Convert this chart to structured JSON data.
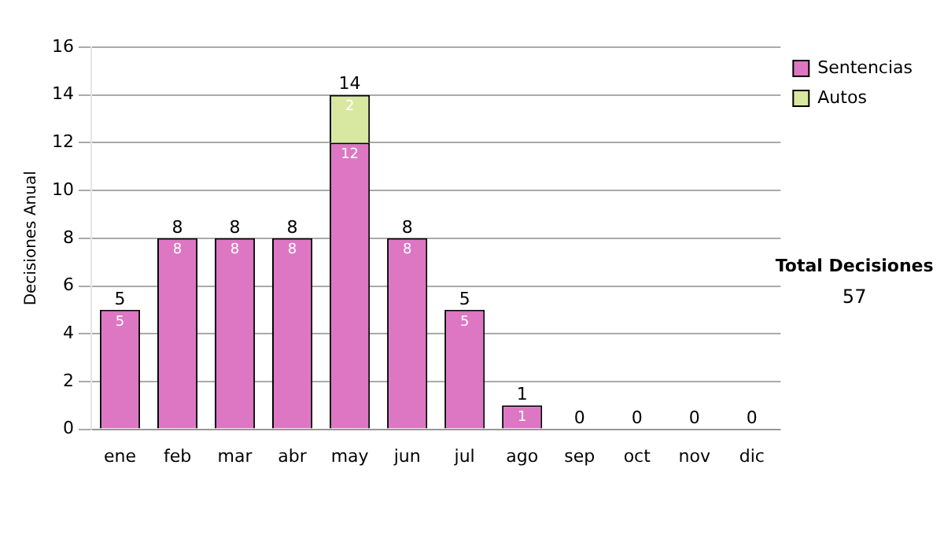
{
  "chart_data": {
    "type": "bar",
    "stacked": true,
    "ylabel": "Decisiones Anual",
    "categories": [
      "ene",
      "feb",
      "mar",
      "abr",
      "may",
      "jun",
      "jul",
      "ago",
      "sep",
      "oct",
      "nov",
      "dic"
    ],
    "series": [
      {
        "name": "Sentencias",
        "color": "#dd77c4",
        "values": [
          5,
          8,
          8,
          8,
          12,
          8,
          5,
          1,
          0,
          0,
          0,
          0
        ],
        "value_labels": [
          "5",
          "8",
          "8",
          "8",
          "12",
          "8",
          "5",
          "1",
          null,
          null,
          null,
          null
        ]
      },
      {
        "name": "Autos",
        "color": "#d8e8a0",
        "values": [
          0,
          0,
          0,
          0,
          2,
          0,
          0,
          0,
          0,
          0,
          0,
          0
        ],
        "value_labels": [
          null,
          null,
          null,
          null,
          "2",
          null,
          null,
          null,
          null,
          null,
          null,
          null
        ]
      }
    ],
    "totals": [
      "5",
      "8",
      "8",
      "8",
      "14",
      "8",
      "5",
      "1",
      "0",
      "0",
      "0",
      "0"
    ],
    "ylim": [
      0,
      16
    ],
    "yticks": [
      0,
      2,
      4,
      6,
      8,
      10,
      12,
      14,
      16
    ],
    "grid": "y",
    "legend": "right",
    "annotations": [
      "Total Decisiones",
      "57"
    ]
  }
}
